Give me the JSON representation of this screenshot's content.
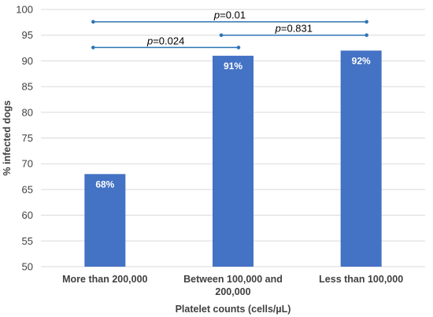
{
  "chart_data": {
    "type": "bar",
    "categories": [
      [
        "More than 200,000"
      ],
      [
        "Between 100,000 and",
        "200,000"
      ],
      [
        "Less than 100,000"
      ]
    ],
    "values": [
      68,
      91,
      92
    ],
    "data_labels": [
      "68%",
      "91%",
      "92%"
    ],
    "xlabel": "Platelet counts (cells/µL)",
    "ylabel": "% infected dogs",
    "ylim": [
      50,
      100
    ],
    "yticks": [
      50,
      55,
      60,
      65,
      70,
      75,
      80,
      85,
      90,
      95,
      100
    ],
    "grid": true,
    "bar_color": "#4472C4",
    "grid_color": "#D9D9D9",
    "bracket_color": "#2E74B5",
    "comparisons": [
      {
        "from": 0,
        "to": 2,
        "level": 97.6,
        "p_prefix": "p",
        "p_value": "=0.01"
      },
      {
        "from": 1,
        "to": 2,
        "level": 95.0,
        "p_prefix": "p",
        "p_value": "=0.831"
      },
      {
        "from": 0,
        "to": 1,
        "level": 92.6,
        "p_prefix": "p",
        "p_value": "=0.024"
      }
    ]
  }
}
